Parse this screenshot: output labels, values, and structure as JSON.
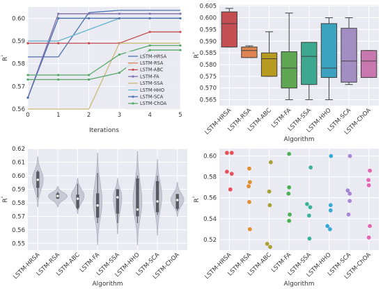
{
  "colors": {
    "bg": "#EAEAF2",
    "grid": "#FFFFFF",
    "violin": "#C9C9D6",
    "violin_inner": "#5A5A63"
  },
  "chart_data": [
    {
      "id": "p1",
      "type": "line",
      "xlabel": "Iterations",
      "ylabel": "R²",
      "xlim": [
        0,
        5
      ],
      "ylim": [
        0.56,
        0.605
      ],
      "xticks": [
        "0",
        "1",
        "2",
        "3",
        "4",
        "5"
      ],
      "yticks": [
        "0.56",
        "0.57",
        "0.58",
        "0.59",
        "0.60"
      ],
      "legend": "right",
      "x": [
        0,
        1,
        2,
        3,
        4,
        5
      ],
      "series": [
        {
          "name": "LSTM-HRSA",
          "color": "#4C72B0",
          "marker": false,
          "values": [
            0.583,
            0.583,
            0.6025,
            0.6035,
            0.6035,
            0.6035
          ]
        },
        {
          "name": "LSTM-RSA",
          "color": "#DD8452",
          "marker": false,
          "values": [
            0.565,
            0.602,
            0.602,
            0.602,
            0.602,
            0.602
          ]
        },
        {
          "name": "LSTM-ABC",
          "color": "#C44E52",
          "marker": true,
          "values": [
            0.589,
            0.589,
            0.589,
            0.589,
            0.594,
            0.594
          ]
        },
        {
          "name": "LSTM-FA",
          "color": "#8172B3",
          "marker": true,
          "values": [
            0.565,
            0.602,
            0.602,
            0.602,
            0.602,
            0.602
          ]
        },
        {
          "name": "LSTM-SSA",
          "color": "#CCB974",
          "marker": false,
          "values": [
            0.56,
            0.56,
            0.56,
            0.589,
            0.589,
            0.589
          ]
        },
        {
          "name": "LSTM-HHO",
          "color": "#64B5CD",
          "marker": false,
          "values": [
            0.59,
            0.59,
            0.595,
            0.6,
            0.6,
            0.6
          ]
        },
        {
          "name": "LSTM-SCA",
          "color": "#4C72B0",
          "marker": true,
          "values": [
            0.565,
            0.6,
            0.6,
            0.6,
            0.6,
            0.6
          ]
        },
        {
          "name": "LSTM-ChOA",
          "color": "#55A868",
          "marker": true,
          "values": [
            0.575,
            0.575,
            0.575,
            0.584,
            0.588,
            0.588
          ]
        },
        {
          "name": "",
          "color": "#55A868",
          "marker": true,
          "values": [
            0.573,
            0.573,
            0.573,
            0.576,
            0.586,
            0.586
          ]
        }
      ]
    },
    {
      "id": "p2",
      "type": "box",
      "xlabel": "Algorithm",
      "ylabel": "R²",
      "ylim": [
        0.5625,
        0.6055
      ],
      "yticks": [
        "0.565",
        "0.570",
        "0.575",
        "0.580",
        "0.585",
        "0.590",
        "0.595",
        "0.600",
        "0.605"
      ],
      "categories": [
        "LSTM-HRSA",
        "LSTM-RSA",
        "LSTM-ABC",
        "LSTM-FA",
        "LSTM-SSA",
        "LSTM-HHO",
        "LSTM-SCA",
        "LSTM-ChOA"
      ],
      "colors": [
        "#C44E52",
        "#DD8452",
        "#B79A20",
        "#5FA653",
        "#3BA88F",
        "#3BA3BF",
        "#A38EC4",
        "#C978AF"
      ],
      "boxes": [
        {
          "min": 0.5875,
          "q1": 0.5875,
          "median": 0.5975,
          "q3": 0.6025,
          "max": 0.604
        },
        {
          "min": 0.583,
          "q1": 0.583,
          "median": 0.586,
          "q3": 0.5875,
          "max": 0.588
        },
        {
          "min": 0.575,
          "q1": 0.575,
          "median": 0.5825,
          "q3": 0.585,
          "max": 0.594
        },
        {
          "min": 0.565,
          "q1": 0.57,
          "median": 0.5785,
          "q3": 0.5855,
          "max": 0.602
        },
        {
          "min": 0.565,
          "q1": 0.5715,
          "median": 0.5835,
          "q3": 0.5895,
          "max": 0.5895
        },
        {
          "min": 0.565,
          "q1": 0.5745,
          "median": 0.5785,
          "q3": 0.5975,
          "max": 0.6
        },
        {
          "min": 0.5715,
          "q1": 0.5725,
          "median": 0.5815,
          "q3": 0.5955,
          "max": 0.6
        },
        {
          "min": 0.5745,
          "q1": 0.5745,
          "median": 0.5815,
          "q3": 0.586,
          "max": 0.586
        }
      ]
    },
    {
      "id": "p3",
      "type": "violin",
      "xlabel": "Algorithm",
      "ylabel": "R²",
      "ylim": [
        0.545,
        0.62
      ],
      "yticks": [
        "0.55",
        "0.56",
        "0.57",
        "0.58",
        "0.59",
        "0.60",
        "0.61",
        "0.62"
      ],
      "categories": [
        "LSTM-HRSA",
        "LSTM-RSA",
        "LSTM-ABC",
        "LSTM-FA",
        "LSTM-SSA",
        "LSTM-HHO",
        "LSTM-SCA",
        "LSTM-ChOA"
      ],
      "violins": [
        {
          "min": 0.577,
          "max": 0.614,
          "q1": 0.591,
          "median": 0.597,
          "q3": 0.603,
          "wmin": 0.584,
          "wmax": 0.604,
          "peak": 0.598,
          "width": 0.55
        },
        {
          "min": 0.577,
          "max": 0.592,
          "q1": 0.583,
          "median": 0.585,
          "q3": 0.587,
          "wmin": 0.583,
          "wmax": 0.588,
          "peak": 0.585,
          "width": 0.95
        },
        {
          "min": 0.572,
          "max": 0.598,
          "q1": 0.576,
          "median": 0.583,
          "q3": 0.586,
          "wmin": 0.575,
          "wmax": 0.594,
          "peak": 0.585,
          "width": 0.65
        },
        {
          "min": 0.549,
          "max": 0.617,
          "q1": 0.569,
          "median": 0.578,
          "q3": 0.587,
          "wmin": 0.565,
          "wmax": 0.602,
          "peak": 0.58,
          "width": 0.45
        },
        {
          "min": 0.557,
          "max": 0.598,
          "q1": 0.572,
          "median": 0.584,
          "q3": 0.59,
          "wmin": 0.565,
          "wmax": 0.59,
          "peak": 0.586,
          "width": 0.45
        },
        {
          "min": 0.549,
          "max": 0.618,
          "q1": 0.57,
          "median": 0.575,
          "q3": 0.598,
          "wmin": 0.565,
          "wmax": 0.6,
          "peak": 0.58,
          "width": 0.45
        },
        {
          "min": 0.556,
          "max": 0.612,
          "q1": 0.573,
          "median": 0.581,
          "q3": 0.596,
          "wmin": 0.571,
          "wmax": 0.6,
          "peak": 0.585,
          "width": 0.45
        },
        {
          "min": 0.57,
          "max": 0.595,
          "q1": 0.5755,
          "median": 0.582,
          "q3": 0.5865,
          "wmin": 0.574,
          "wmax": 0.586,
          "peak": 0.582,
          "width": 0.65
        }
      ]
    },
    {
      "id": "p4",
      "type": "scatter",
      "xlabel": "Algorithm",
      "ylabel": "R²",
      "ylim": [
        0.51,
        0.607
      ],
      "yticks": [
        "0.52",
        "0.54",
        "0.56",
        "0.58",
        "0.60"
      ],
      "categories": [
        "LSTM-HRSA",
        "LSTM-RSA",
        "LSTM-ABC",
        "LSTM-FA",
        "LSTM-SSA",
        "LSTM-HHO",
        "LSTM-SCA",
        "LSTM-ChOA"
      ],
      "colors": [
        "#E8505B",
        "#E0902E",
        "#A9A132",
        "#4CB054",
        "#3DB29B",
        "#36A9D8",
        "#A885D6",
        "#E466B4"
      ],
      "points": [
        [
          [
            -0.12,
            0.603
          ],
          [
            0.12,
            0.603
          ],
          [
            -0.12,
            0.585
          ],
          [
            0.12,
            0.583
          ],
          [
            0.05,
            0.568
          ]
        ],
        [
          [
            0,
            0.588
          ],
          [
            0.03,
            0.575
          ],
          [
            -0.03,
            0.571
          ],
          [
            0,
            0.556
          ],
          [
            0.03,
            0.53
          ]
        ],
        [
          [
            0.08,
            0.594
          ],
          [
            0,
            0.566
          ],
          [
            0.03,
            0.553
          ],
          [
            -0.1,
            0.516
          ],
          [
            0.05,
            0.513
          ]
        ],
        [
          [
            0,
            0.602
          ],
          [
            0,
            0.57
          ],
          [
            -0.03,
            0.564
          ],
          [
            0.03,
            0.544
          ],
          [
            0,
            0.538
          ]
        ],
        [
          [
            0.08,
            0.589
          ],
          [
            -0.1,
            0.554
          ],
          [
            0.06,
            0.551
          ],
          [
            0,
            0.543
          ],
          [
            0.02,
            0.521
          ]
        ],
        [
          [
            0.1,
            0.6
          ],
          [
            0.08,
            0.553
          ],
          [
            0.08,
            0.548
          ],
          [
            -0.08,
            0.533
          ],
          [
            0.05,
            0.53
          ]
        ],
        [
          [
            0.05,
            0.6
          ],
          [
            -0.06,
            0.567
          ],
          [
            0.04,
            0.564
          ],
          [
            0.04,
            0.557
          ],
          [
            -0.02,
            0.544
          ]
        ],
        [
          [
            0.05,
            0.586
          ],
          [
            -0.02,
            0.577
          ],
          [
            0,
            0.572
          ],
          [
            0.05,
            0.533
          ],
          [
            0,
            0.522
          ]
        ]
      ]
    }
  ]
}
